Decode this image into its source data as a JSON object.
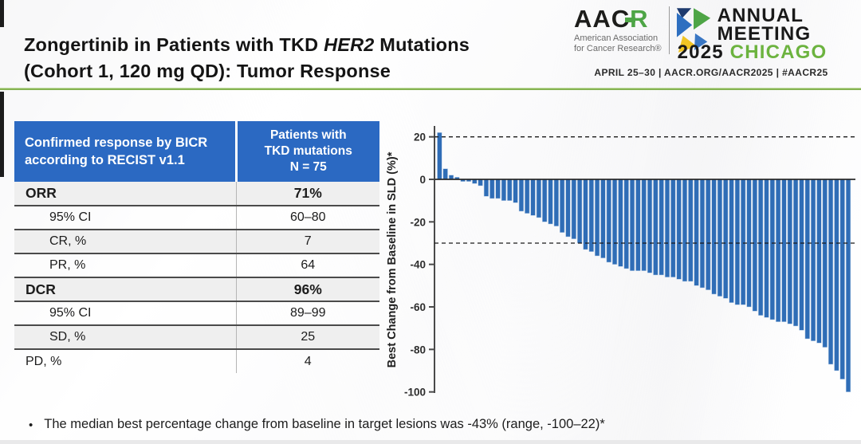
{
  "slide": {
    "title_pre": "Zongertinib in Patients with TKD ",
    "title_gene": "HER2",
    "title_post": " Mutations",
    "title_line2": "(Cohort 1, 120 mg QD): Tumor Response",
    "footnote_bullet": "•",
    "footnote": "The median best percentage change from baseline in target lesions was -43% (range, -100–22)*"
  },
  "logo": {
    "wordmark_aac": "AAC",
    "wordmark_r": "R",
    "subtext_line1": "American Association",
    "subtext_line2": "for Cancer Research®",
    "meeting_line1": "ANNUAL",
    "meeting_line2": "MEETING",
    "year": "2025 ",
    "city": "CHICAGO",
    "tagline": "APRIL 25–30  |  AACR.ORG/AACR2025  |  #AACR25"
  },
  "table": {
    "header_col1": "Confirmed response by BICR according to RECIST v1.1",
    "header_col2": "Patients with\nTKD mutations\nN = 75",
    "rows": [
      {
        "label": "ORR",
        "value": "71%",
        "bold": true,
        "indent": false
      },
      {
        "label": "95% CI",
        "value": "60–80",
        "bold": false,
        "indent": true
      },
      {
        "label": "CR, %",
        "value": "7",
        "bold": false,
        "indent": true
      },
      {
        "label": "PR, %",
        "value": "64",
        "bold": false,
        "indent": true
      },
      {
        "label": "DCR",
        "value": "96%",
        "bold": true,
        "indent": false
      },
      {
        "label": "95% CI",
        "value": "89–99",
        "bold": false,
        "indent": true
      },
      {
        "label": "SD, %",
        "value": "25",
        "bold": false,
        "indent": true
      },
      {
        "label": "PD, %",
        "value": "4",
        "bold": false,
        "indent": false
      }
    ]
  },
  "chart_data": {
    "type": "bar",
    "subtype": "waterfall",
    "title": "",
    "xlabel": "",
    "ylabel": "Best Change from Baseline in SLD (%)*",
    "ylim": [
      -100,
      25
    ],
    "yticks": [
      20,
      0,
      -20,
      -40,
      -60,
      -80,
      -100
    ],
    "reference_lines_dashed": [
      20,
      -30
    ],
    "zero_line": 0,
    "grid": false,
    "legend": "none",
    "bar_color": "#2f6db6",
    "bar_edge_color": "#bcd1e9",
    "values": [
      22,
      5,
      2,
      1,
      -1,
      -1,
      -2,
      -3,
      -8,
      -9,
      -9,
      -10,
      -10,
      -11,
      -15,
      -16,
      -17,
      -18,
      -20,
      -21,
      -22,
      -25,
      -27,
      -28,
      -30,
      -33,
      -34,
      -36,
      -37,
      -39,
      -40,
      -41,
      -42,
      -43,
      -43,
      -43,
      -44,
      -45,
      -45,
      -46,
      -46,
      -47,
      -48,
      -48,
      -50,
      -51,
      -52,
      -54,
      -55,
      -56,
      -58,
      -59,
      -59,
      -60,
      -62,
      -64,
      -65,
      -66,
      -67,
      -67,
      -68,
      -69,
      -71,
      -75,
      -76,
      -77,
      -79,
      -87,
      -90,
      -94,
      -100
    ]
  },
  "colors": {
    "table_header_blue": "#2b69c2",
    "bar_blue": "#2f6db6",
    "accent_green": "#86b452",
    "logo_green": "#6cb33f",
    "row_shade": "#efefef"
  }
}
